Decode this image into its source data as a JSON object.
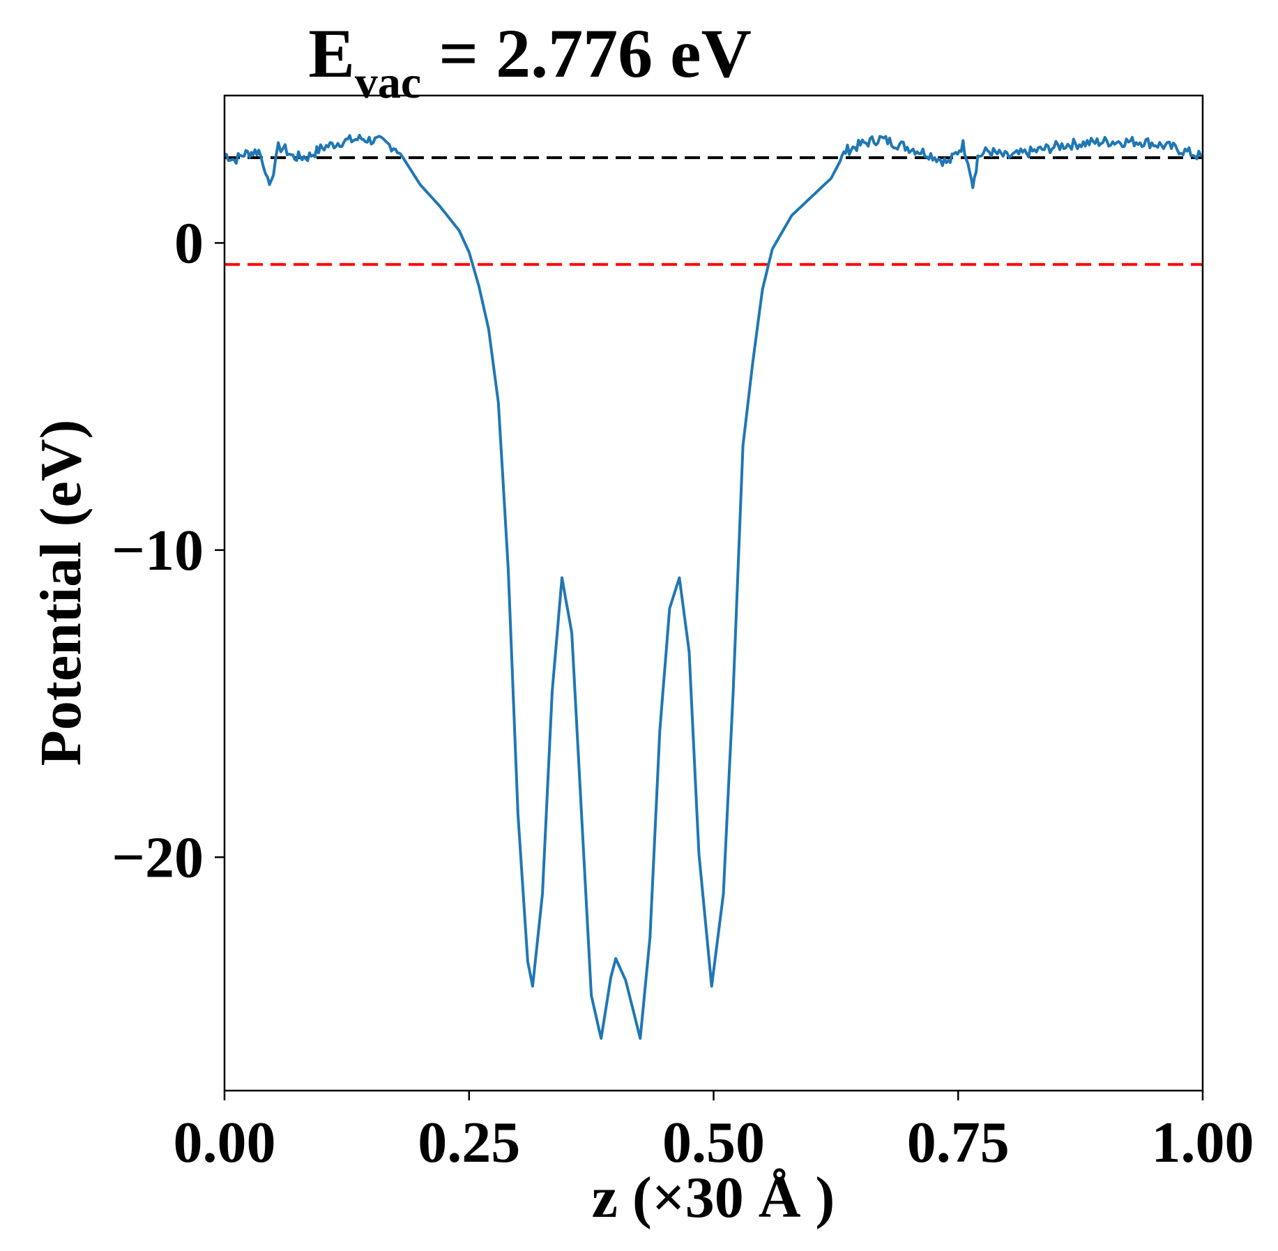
{
  "chart_data": {
    "type": "line",
    "title": {
      "main": "E",
      "sub": "vac",
      "rest": " = 2.776 eV"
    },
    "xlabel": "z (×30 Å )",
    "ylabel": "Potential (eV)",
    "xlim": [
      0,
      1
    ],
    "ylim": [
      -27.6,
      4.8
    ],
    "xticks": [
      0,
      0.25,
      0.5,
      0.75,
      1.0
    ],
    "xtick_labels": [
      "0.00",
      "0.25",
      "0.50",
      "0.75",
      "1.00"
    ],
    "yticks": [
      0,
      -10,
      -20
    ],
    "ytick_labels": [
      "0",
      "−10",
      "−20"
    ],
    "grid": false,
    "reference_lines": [
      {
        "name": "vacuum level",
        "y": 2.776,
        "color": "#000000",
        "style": "dashed"
      },
      {
        "name": "fermi level",
        "y": -0.7,
        "color": "#ff0000",
        "style": "dashed"
      }
    ],
    "series": [
      {
        "name": "potential",
        "color": "#1f77b4",
        "x": [
          0,
          0.01,
          0.02,
          0.035,
          0.042,
          0.046,
          0.05,
          0.055,
          0.06,
          0.07,
          0.085,
          0.1,
          0.12,
          0.14,
          0.16,
          0.175,
          0.18,
          0.2,
          0.22,
          0.24,
          0.25,
          0.26,
          0.27,
          0.28,
          0.29,
          0.3,
          0.31,
          0.315,
          0.325,
          0.335,
          0.345,
          0.355,
          0.365,
          0.375,
          0.385,
          0.395,
          0.4,
          0.41,
          0.425,
          0.435,
          0.445,
          0.455,
          0.465,
          0.475,
          0.485,
          0.498,
          0.51,
          0.52,
          0.53,
          0.54,
          0.55,
          0.56,
          0.58,
          0.6,
          0.62,
          0.635,
          0.65,
          0.67,
          0.7,
          0.72,
          0.74,
          0.755,
          0.76,
          0.765,
          0.77,
          0.78,
          0.8,
          0.83,
          0.86,
          0.9,
          0.94,
          0.97,
          1.0
        ],
        "y": [
          2.9,
          2.7,
          2.9,
          3.0,
          2.4,
          1.9,
          2.2,
          3.1,
          3.1,
          2.8,
          2.8,
          3.1,
          3.3,
          3.4,
          3.3,
          3.1,
          2.9,
          1.9,
          1.2,
          0.4,
          -0.3,
          -1.4,
          -2.8,
          -5.2,
          -10.6,
          -18.6,
          -23.4,
          -24.2,
          -21.2,
          -14.6,
          -10.9,
          -12.7,
          -18.6,
          -24.5,
          -25.9,
          -23.9,
          -23.3,
          -24.0,
          -25.9,
          -22.6,
          -15.9,
          -11.9,
          -10.9,
          -13.3,
          -19.9,
          -24.2,
          -21.2,
          -14.6,
          -6.6,
          -3.9,
          -1.5,
          -0.2,
          0.9,
          1.5,
          2.1,
          3.0,
          3.2,
          3.4,
          3.1,
          2.9,
          2.6,
          3.2,
          2.7,
          1.8,
          2.8,
          3.0,
          2.8,
          3.0,
          3.2,
          3.3,
          3.3,
          3.1,
          2.8
        ]
      }
    ]
  }
}
